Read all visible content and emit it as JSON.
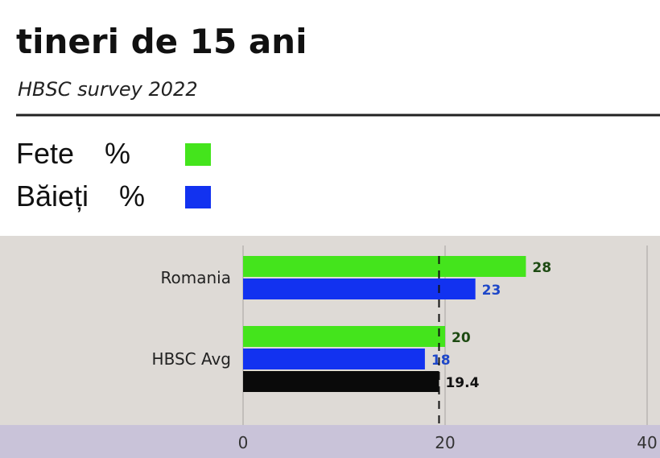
{
  "chart_data": {
    "type": "bar",
    "orientation": "horizontal",
    "title": "tineri de 15 ani",
    "subtitle": "HBSC survey 2022",
    "categories": [
      "Romania",
      "HBSC Avg"
    ],
    "series": [
      {
        "name": "Fete %",
        "color": "#44e41c",
        "label_color": "#1d4a12",
        "values": [
          28,
          20
        ]
      },
      {
        "name": "Băieți %",
        "color": "#1232f0",
        "label_color": "#1e47c8",
        "values": [
          23,
          18
        ]
      },
      {
        "color": "#0a0a0a",
        "label_color": "#111111",
        "values": [
          null,
          19.4
        ]
      }
    ],
    "xlim": [
      0,
      40
    ],
    "xticks": [
      0,
      20,
      40
    ],
    "grid": true
  }
}
